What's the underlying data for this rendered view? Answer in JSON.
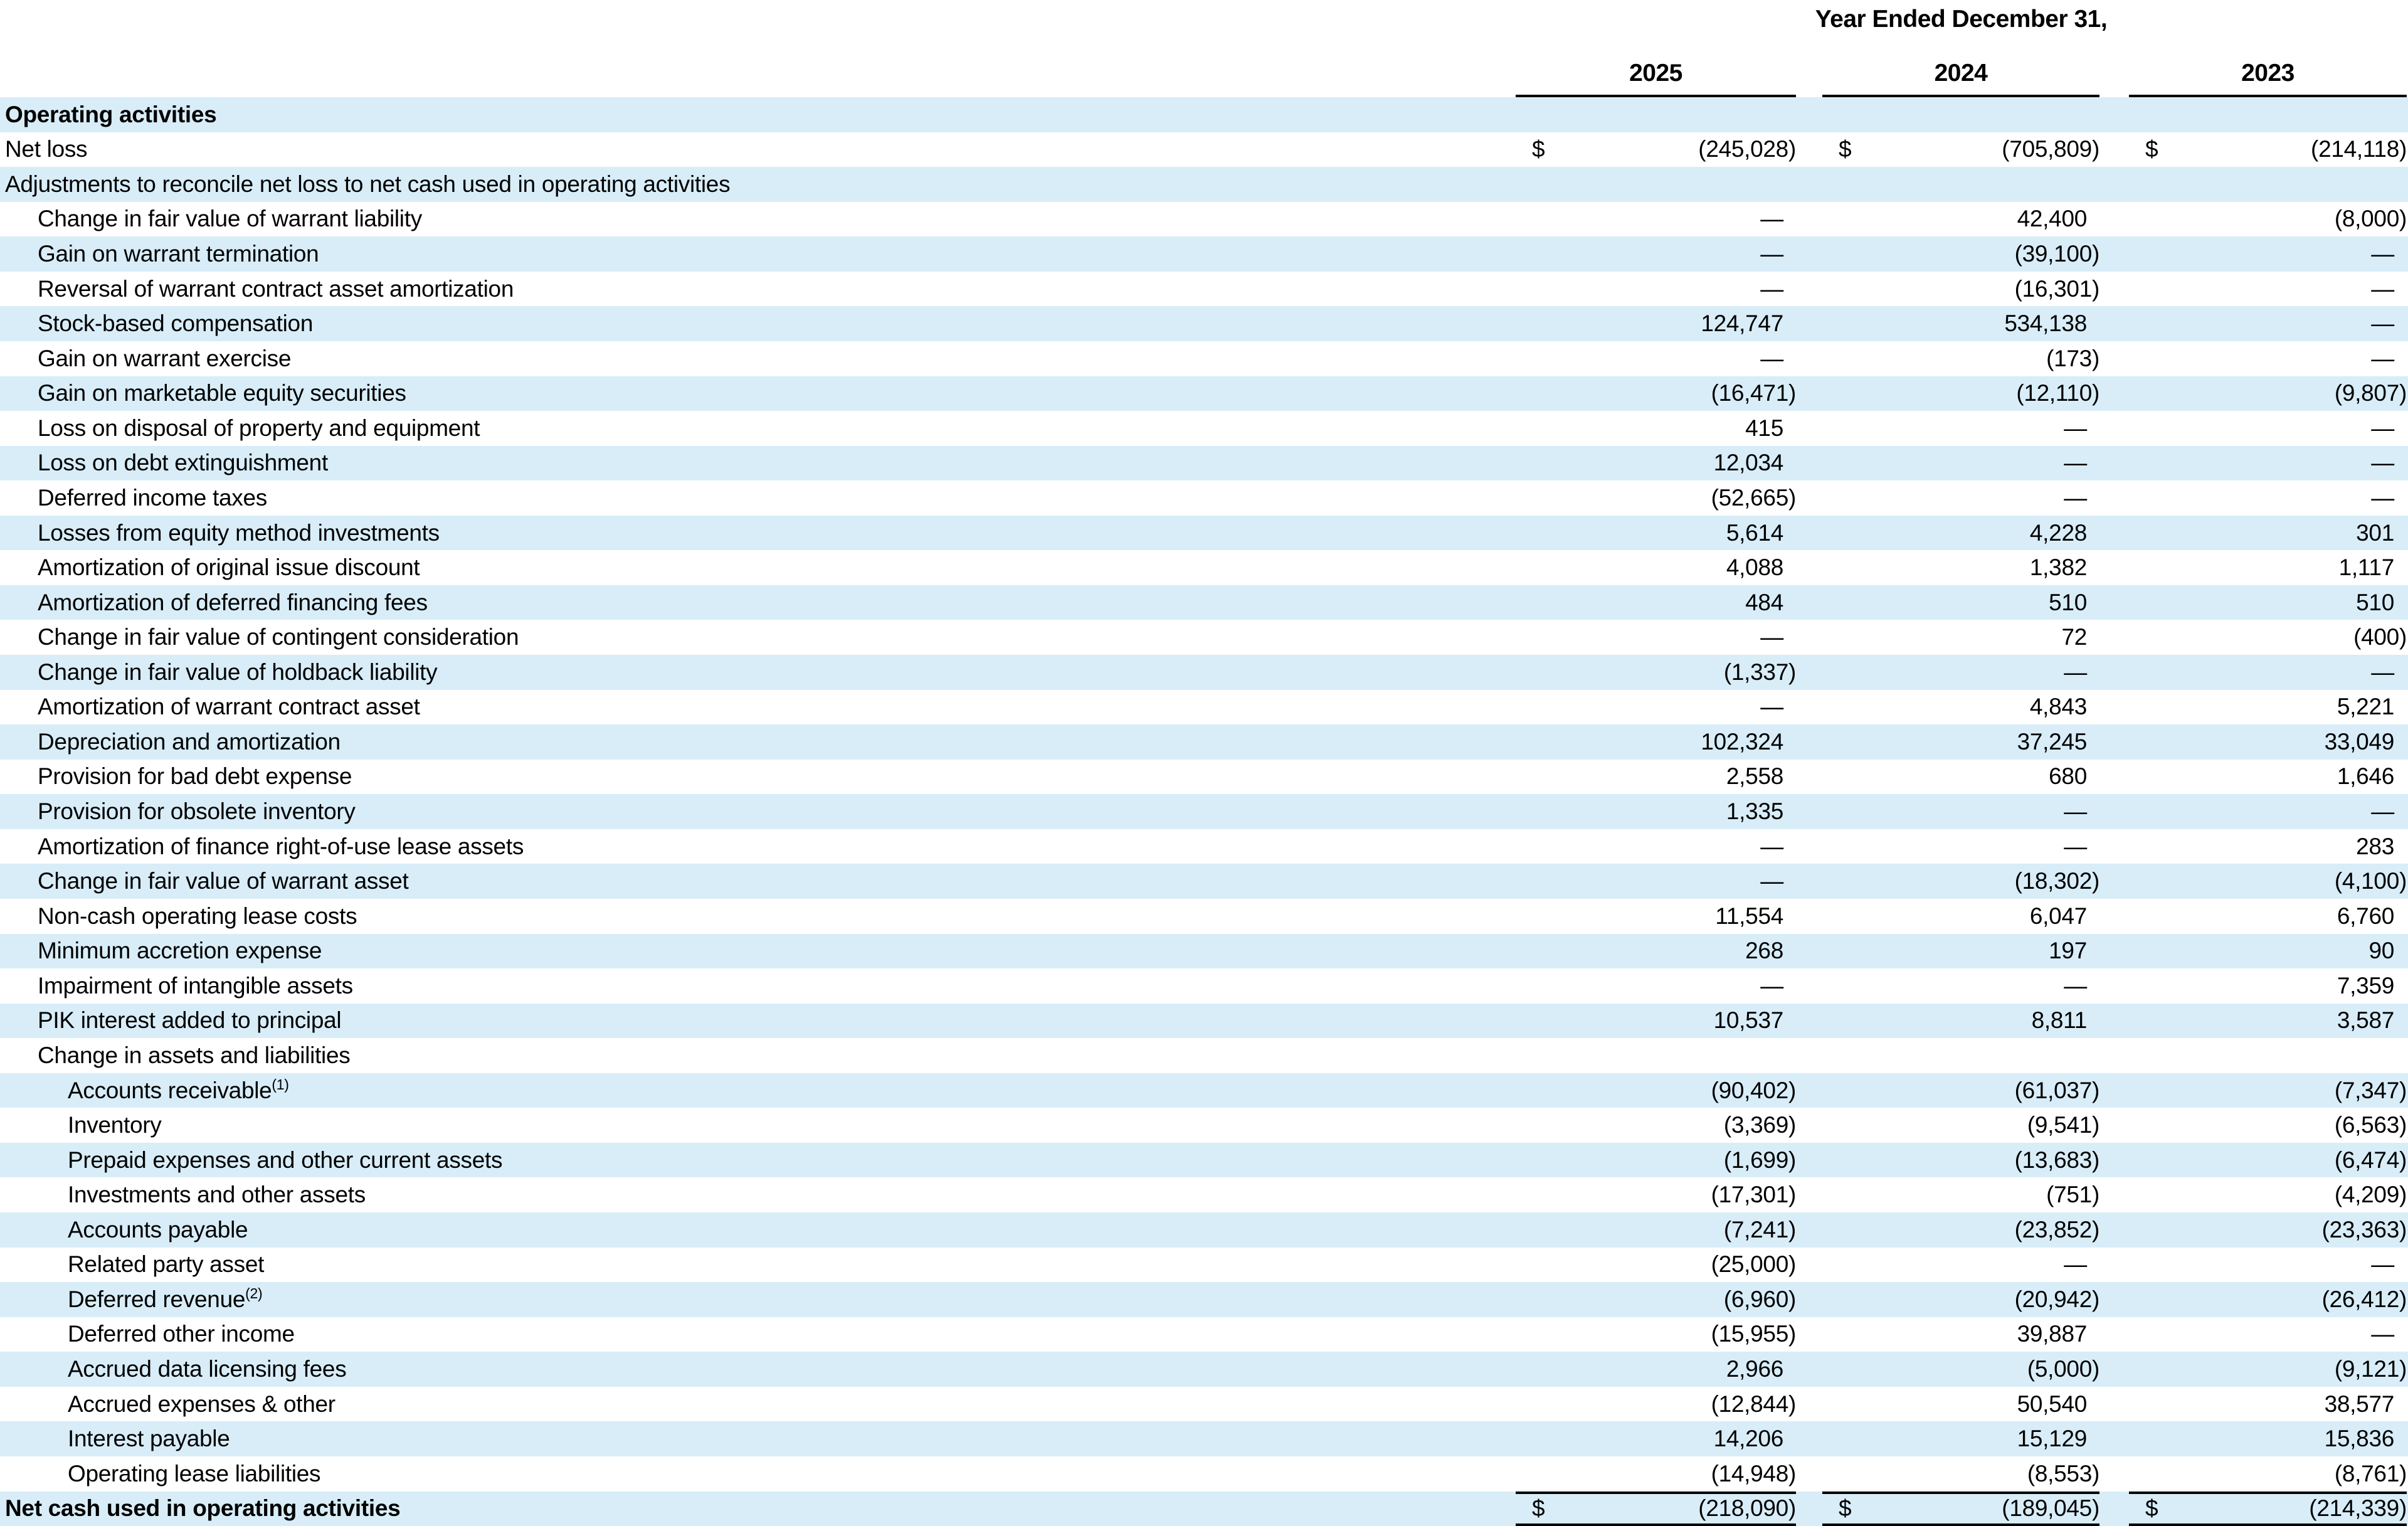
{
  "table": {
    "header": {
      "title": "Year Ended December 31,",
      "years": [
        "2025",
        "2024",
        "2023"
      ]
    },
    "colors": {
      "stripe": "#d8edf8",
      "text": "#000000",
      "line": "#000000"
    },
    "rows": [
      {
        "label": "Operating activities",
        "sup": "",
        "indent": 0,
        "bold": true,
        "shade": true,
        "dollar": false,
        "total": false,
        "values": [
          "",
          "",
          ""
        ]
      },
      {
        "label": "Net loss",
        "sup": "",
        "indent": 0,
        "bold": false,
        "shade": false,
        "dollar": true,
        "total": false,
        "values": [
          "(245,028)",
          "(705,809)",
          "(214,118)"
        ]
      },
      {
        "label": "Adjustments to reconcile net loss to net cash used in operating activities",
        "sup": "",
        "indent": 0,
        "bold": false,
        "shade": true,
        "dollar": false,
        "total": false,
        "values": [
          "",
          "",
          ""
        ]
      },
      {
        "label": "Change in fair value of warrant liability",
        "sup": "",
        "indent": 1,
        "bold": false,
        "shade": false,
        "dollar": false,
        "total": false,
        "values": [
          "—",
          "42,400",
          "(8,000)"
        ]
      },
      {
        "label": "Gain on warrant termination",
        "sup": "",
        "indent": 1,
        "bold": false,
        "shade": true,
        "dollar": false,
        "total": false,
        "values": [
          "—",
          "(39,100)",
          "—"
        ]
      },
      {
        "label": "Reversal of warrant contract asset amortization",
        "sup": "",
        "indent": 1,
        "bold": false,
        "shade": false,
        "dollar": false,
        "total": false,
        "values": [
          "—",
          "(16,301)",
          "—"
        ]
      },
      {
        "label": "Stock-based compensation",
        "sup": "",
        "indent": 1,
        "bold": false,
        "shade": true,
        "dollar": false,
        "total": false,
        "values": [
          "124,747",
          "534,138",
          "—"
        ]
      },
      {
        "label": "Gain on warrant exercise",
        "sup": "",
        "indent": 1,
        "bold": false,
        "shade": false,
        "dollar": false,
        "total": false,
        "values": [
          "—",
          "(173)",
          "—"
        ]
      },
      {
        "label": "Gain on marketable equity securities",
        "sup": "",
        "indent": 1,
        "bold": false,
        "shade": true,
        "dollar": false,
        "total": false,
        "values": [
          "(16,471)",
          "(12,110)",
          "(9,807)"
        ]
      },
      {
        "label": "Loss on disposal of property and equipment",
        "sup": "",
        "indent": 1,
        "bold": false,
        "shade": false,
        "dollar": false,
        "total": false,
        "values": [
          "415",
          "—",
          "—"
        ]
      },
      {
        "label": "Loss on debt extinguishment",
        "sup": "",
        "indent": 1,
        "bold": false,
        "shade": true,
        "dollar": false,
        "total": false,
        "values": [
          "12,034",
          "—",
          "—"
        ]
      },
      {
        "label": "Deferred income taxes",
        "sup": "",
        "indent": 1,
        "bold": false,
        "shade": false,
        "dollar": false,
        "total": false,
        "values": [
          "(52,665)",
          "—",
          "—"
        ]
      },
      {
        "label": "Losses from equity method investments",
        "sup": "",
        "indent": 1,
        "bold": false,
        "shade": true,
        "dollar": false,
        "total": false,
        "values": [
          "5,614",
          "4,228",
          "301"
        ]
      },
      {
        "label": "Amortization of original issue discount",
        "sup": "",
        "indent": 1,
        "bold": false,
        "shade": false,
        "dollar": false,
        "total": false,
        "values": [
          "4,088",
          "1,382",
          "1,117"
        ]
      },
      {
        "label": "Amortization of deferred financing fees",
        "sup": "",
        "indent": 1,
        "bold": false,
        "shade": true,
        "dollar": false,
        "total": false,
        "values": [
          "484",
          "510",
          "510"
        ]
      },
      {
        "label": "Change in fair value of contingent consideration",
        "sup": "",
        "indent": 1,
        "bold": false,
        "shade": false,
        "dollar": false,
        "total": false,
        "values": [
          "—",
          "72",
          "(400)"
        ]
      },
      {
        "label": "Change in fair value of holdback liability",
        "sup": "",
        "indent": 1,
        "bold": false,
        "shade": true,
        "dollar": false,
        "total": false,
        "values": [
          "(1,337)",
          "—",
          "—"
        ]
      },
      {
        "label": "Amortization of warrant contract asset",
        "sup": "",
        "indent": 1,
        "bold": false,
        "shade": false,
        "dollar": false,
        "total": false,
        "values": [
          "—",
          "4,843",
          "5,221"
        ]
      },
      {
        "label": "Depreciation and amortization",
        "sup": "",
        "indent": 1,
        "bold": false,
        "shade": true,
        "dollar": false,
        "total": false,
        "values": [
          "102,324",
          "37,245",
          "33,049"
        ]
      },
      {
        "label": "Provision for bad debt expense",
        "sup": "",
        "indent": 1,
        "bold": false,
        "shade": false,
        "dollar": false,
        "total": false,
        "values": [
          "2,558",
          "680",
          "1,646"
        ]
      },
      {
        "label": "Provision for obsolete inventory",
        "sup": "",
        "indent": 1,
        "bold": false,
        "shade": true,
        "dollar": false,
        "total": false,
        "values": [
          "1,335",
          "—",
          "—"
        ]
      },
      {
        "label": "Amortization of finance right-of-use lease assets",
        "sup": "",
        "indent": 1,
        "bold": false,
        "shade": false,
        "dollar": false,
        "total": false,
        "values": [
          "—",
          "—",
          "283"
        ]
      },
      {
        "label": "Change in fair value of warrant asset",
        "sup": "",
        "indent": 1,
        "bold": false,
        "shade": true,
        "dollar": false,
        "total": false,
        "values": [
          "—",
          "(18,302)",
          "(4,100)"
        ]
      },
      {
        "label": "Non-cash operating lease costs",
        "sup": "",
        "indent": 1,
        "bold": false,
        "shade": false,
        "dollar": false,
        "total": false,
        "values": [
          "11,554",
          "6,047",
          "6,760"
        ]
      },
      {
        "label": "Minimum accretion expense",
        "sup": "",
        "indent": 1,
        "bold": false,
        "shade": true,
        "dollar": false,
        "total": false,
        "values": [
          "268",
          "197",
          "90"
        ]
      },
      {
        "label": "Impairment of intangible assets",
        "sup": "",
        "indent": 1,
        "bold": false,
        "shade": false,
        "dollar": false,
        "total": false,
        "values": [
          "—",
          "—",
          "7,359"
        ]
      },
      {
        "label": "PIK interest added to principal",
        "sup": "",
        "indent": 1,
        "bold": false,
        "shade": true,
        "dollar": false,
        "total": false,
        "values": [
          "10,537",
          "8,811",
          "3,587"
        ]
      },
      {
        "label": "Change in assets and liabilities",
        "sup": "",
        "indent": 1,
        "bold": false,
        "shade": false,
        "dollar": false,
        "total": false,
        "values": [
          "",
          "",
          ""
        ]
      },
      {
        "label": "Accounts receivable",
        "sup": "(1)",
        "indent": 2,
        "bold": false,
        "shade": true,
        "dollar": false,
        "total": false,
        "values": [
          "(90,402)",
          "(61,037)",
          "(7,347)"
        ]
      },
      {
        "label": "Inventory",
        "sup": "",
        "indent": 2,
        "bold": false,
        "shade": false,
        "dollar": false,
        "total": false,
        "values": [
          "(3,369)",
          "(9,541)",
          "(6,563)"
        ]
      },
      {
        "label": "Prepaid expenses and other current assets",
        "sup": "",
        "indent": 2,
        "bold": false,
        "shade": true,
        "dollar": false,
        "total": false,
        "values": [
          "(1,699)",
          "(13,683)",
          "(6,474)"
        ]
      },
      {
        "label": "Investments and other assets",
        "sup": "",
        "indent": 2,
        "bold": false,
        "shade": false,
        "dollar": false,
        "total": false,
        "values": [
          "(17,301)",
          "(751)",
          "(4,209)"
        ]
      },
      {
        "label": "Accounts payable",
        "sup": "",
        "indent": 2,
        "bold": false,
        "shade": true,
        "dollar": false,
        "total": false,
        "values": [
          "(7,241)",
          "(23,852)",
          "(23,363)"
        ]
      },
      {
        "label": "Related party asset",
        "sup": "",
        "indent": 2,
        "bold": false,
        "shade": false,
        "dollar": false,
        "total": false,
        "values": [
          "(25,000)",
          "—",
          "—"
        ]
      },
      {
        "label": "Deferred revenue",
        "sup": "(2)",
        "indent": 2,
        "bold": false,
        "shade": true,
        "dollar": false,
        "total": false,
        "values": [
          "(6,960)",
          "(20,942)",
          "(26,412)"
        ]
      },
      {
        "label": "Deferred other income",
        "sup": "",
        "indent": 2,
        "bold": false,
        "shade": false,
        "dollar": false,
        "total": false,
        "values": [
          "(15,955)",
          "39,887",
          "—"
        ]
      },
      {
        "label": "Accrued data licensing fees",
        "sup": "",
        "indent": 2,
        "bold": false,
        "shade": true,
        "dollar": false,
        "total": false,
        "values": [
          "2,966",
          "(5,000)",
          "(9,121)"
        ]
      },
      {
        "label": "Accrued expenses & other",
        "sup": "",
        "indent": 2,
        "bold": false,
        "shade": false,
        "dollar": false,
        "total": false,
        "values": [
          "(12,844)",
          "50,540",
          "38,577"
        ]
      },
      {
        "label": "Interest payable",
        "sup": "",
        "indent": 2,
        "bold": false,
        "shade": true,
        "dollar": false,
        "total": false,
        "values": [
          "14,206",
          "15,129",
          "15,836"
        ]
      },
      {
        "label": "Operating lease liabilities",
        "sup": "",
        "indent": 2,
        "bold": false,
        "shade": false,
        "dollar": false,
        "total": false,
        "values": [
          "(14,948)",
          "(8,553)",
          "(8,761)"
        ]
      },
      {
        "label": "Net cash used in operating activities",
        "sup": "",
        "indent": 0,
        "bold": true,
        "shade": true,
        "dollar": true,
        "total": true,
        "values": [
          "(218,090)",
          "(189,045)",
          "(214,339)"
        ]
      }
    ]
  }
}
